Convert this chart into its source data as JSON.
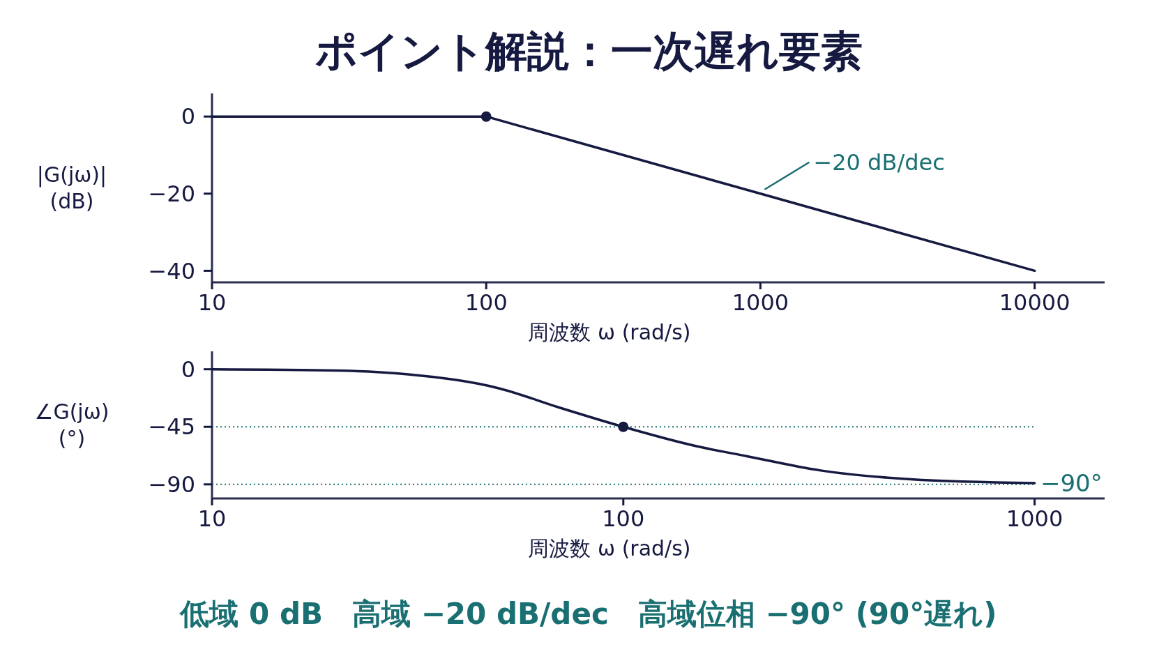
{
  "chart_data": [
    {
      "type": "line",
      "title": "ポイント解説：一次遅れ要素",
      "xlabel": "周波数 ω (rad/s)",
      "ylabel": "|G(jω)|\n(dB)",
      "log": "x",
      "xlim": [
        10,
        18000
      ],
      "xticks": [
        10,
        100,
        1000,
        10000
      ],
      "ylim": [
        -43,
        6
      ],
      "yticks": [
        0,
        -20,
        -40
      ],
      "grid": false,
      "series": [
        {
          "color": "#161a40",
          "x": [
            10,
            100,
            1000,
            10000
          ],
          "values": [
            0,
            0,
            -20,
            -40
          ]
        },
        {
          "type": "scatter",
          "marker": "circle",
          "color": "#161a40",
          "x": [
            100
          ],
          "values": [
            0
          ]
        }
      ],
      "annotations": [
        {
          "text": "−20 dB/dec",
          "x": 1000,
          "y": -20
        }
      ]
    },
    {
      "type": "line",
      "xlabel": "周波数 ω (rad/s)",
      "ylabel": "∠G(jω)\n(°)",
      "log": "x",
      "xlim": [
        10,
        1480
      ],
      "xticks": [
        10,
        100,
        1000
      ],
      "ylim": [
        -101,
        14
      ],
      "yticks": [
        0,
        -45,
        -90
      ],
      "grid": false,
      "series": [
        {
          "color": "#161a40",
          "x": [
            10,
            20,
            30,
            50,
            70,
            100,
            150,
            200,
            300,
            500,
            1000
          ],
          "values": [
            0,
            -1,
            -4,
            -15,
            -30,
            -45,
            -60,
            -68,
            -79,
            -86,
            -89
          ]
        },
        {
          "type": "scatter",
          "marker": "circle",
          "color": "#161a40",
          "x": [
            100
          ],
          "values": [
            -45
          ]
        }
      ],
      "ref_lines": [
        {
          "axis": "y",
          "value": -45,
          "color": "#1a6f72",
          "line_style": "dotted"
        },
        {
          "axis": "y",
          "value": -90,
          "label": "−90°",
          "color": "#1a6f72",
          "line_style": "dotted"
        }
      ],
      "annotations": [
        "低域 0 dB　高域 −20 dB/dec　高域位相 −90° (90°遅れ)"
      ]
    }
  ]
}
